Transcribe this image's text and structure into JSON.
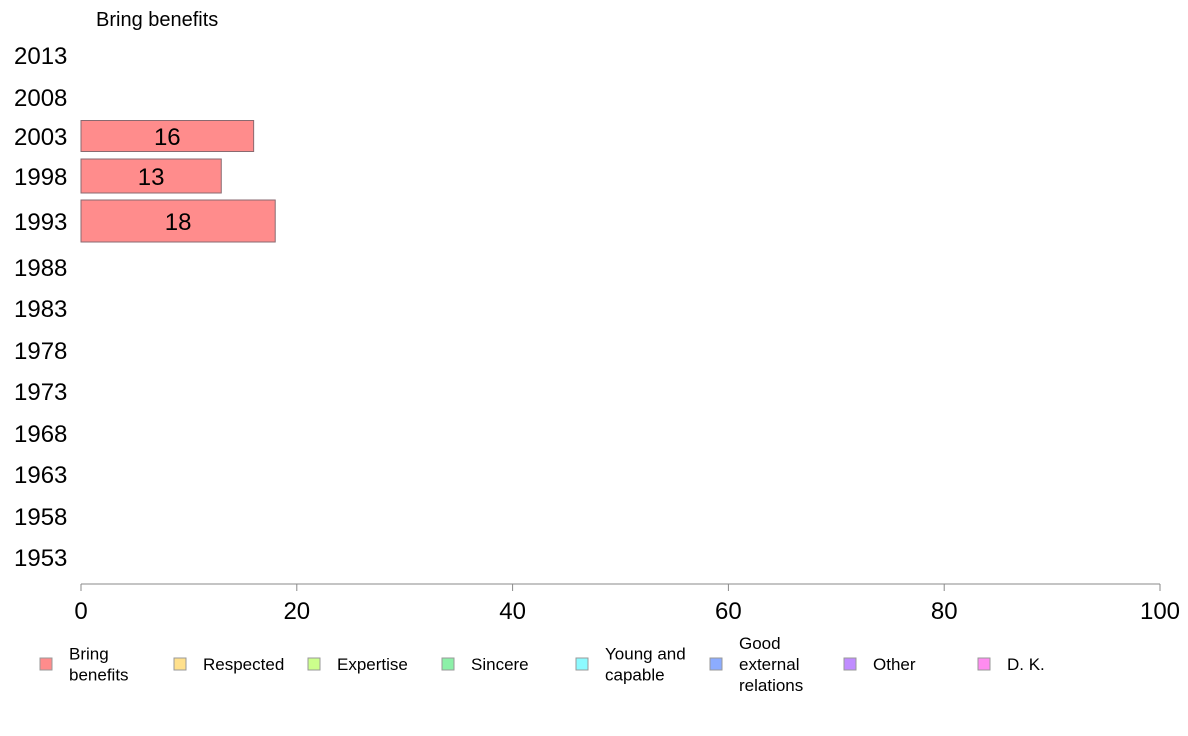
{
  "chart_data": {
    "type": "bar",
    "orientation": "horizontal",
    "facet_title": "Bring benefits",
    "categories": [
      "2013",
      "2008",
      "2003",
      "1998",
      "1993",
      "1988",
      "1983",
      "1978",
      "1973",
      "1968",
      "1963",
      "1958",
      "1953"
    ],
    "series": [
      {
        "name": "Bring benefits",
        "values": [
          null,
          null,
          16,
          13,
          18,
          null,
          null,
          null,
          null,
          null,
          null,
          null,
          null
        ]
      }
    ],
    "xlim": [
      0,
      100
    ],
    "x_ticks": [
      0,
      20,
      40,
      60,
      80,
      100
    ],
    "grid": false,
    "legend_position": "bottom",
    "legend": [
      {
        "label": "Bring benefits",
        "lines": [
          "Bring",
          "benefits"
        ],
        "color": "#ff8c8c"
      },
      {
        "label": "Respected",
        "lines": [
          "Respected"
        ],
        "color": "#ffe08c"
      },
      {
        "label": "Expertise",
        "lines": [
          "Expertise"
        ],
        "color": "#ccff8c"
      },
      {
        "label": "Sincere",
        "lines": [
          "Sincere"
        ],
        "color": "#8cf0a8"
      },
      {
        "label": "Young and capable",
        "lines": [
          "Young and",
          "capable"
        ],
        "color": "#8cfaff"
      },
      {
        "label": "Good external relations",
        "lines": [
          "Good",
          "external",
          "relations"
        ],
        "color": "#8cacff"
      },
      {
        "label": "Other",
        "lines": [
          "Other"
        ],
        "color": "#c08cff"
      },
      {
        "label": "D. K.",
        "lines": [
          "D. K."
        ],
        "color": "#ff8cf0"
      }
    ]
  }
}
